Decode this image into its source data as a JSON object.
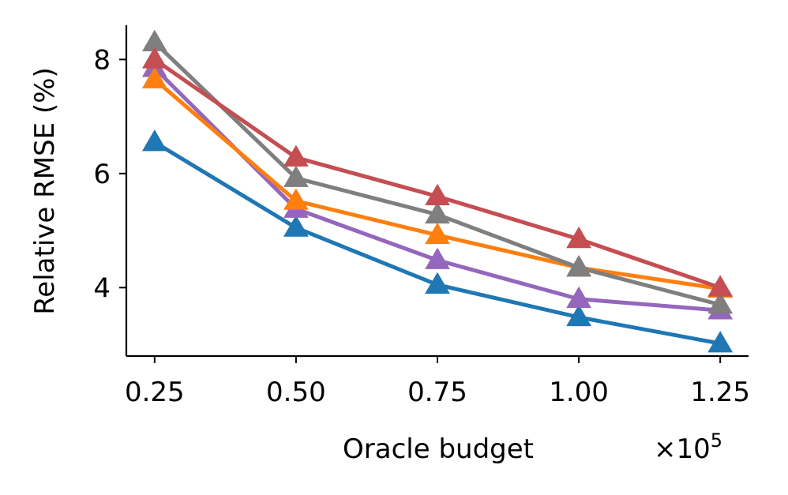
{
  "chart_data": {
    "type": "line",
    "title": "",
    "xlabel": "Oracle budget",
    "ylabel": "Relative RMSE (%)",
    "x_scale_label": "×10",
    "x_scale_exponent": "5",
    "x": [
      0.25,
      0.5,
      0.75,
      1.0,
      1.25
    ],
    "x_tick_labels": [
      "0.25",
      "0.50",
      "0.75",
      "1.00",
      "1.25"
    ],
    "y_ticks": [
      4,
      6,
      8
    ],
    "y_tick_labels": [
      "4",
      "6",
      "8"
    ],
    "xlim": [
      0.2,
      1.3
    ],
    "ylim": [
      2.8,
      8.6
    ],
    "grid": false,
    "marker": "triangle-up",
    "series": [
      {
        "name": "blue",
        "color": "#1f77b4",
        "values": [
          6.55,
          5.05,
          4.05,
          3.48,
          3.02
        ]
      },
      {
        "name": "purple",
        "color": "#9467bd",
        "values": [
          7.85,
          5.38,
          4.48,
          3.8,
          3.6
        ]
      },
      {
        "name": "orange",
        "color": "#ff7f0e",
        "values": [
          7.65,
          5.52,
          4.92,
          4.35,
          3.98
        ]
      },
      {
        "name": "gray",
        "color": "#7f7f7f",
        "values": [
          8.3,
          5.92,
          5.28,
          4.35,
          3.7
        ]
      },
      {
        "name": "red",
        "color": "#c44e52",
        "values": [
          8.0,
          6.28,
          5.6,
          4.85,
          4.0
        ]
      }
    ]
  }
}
